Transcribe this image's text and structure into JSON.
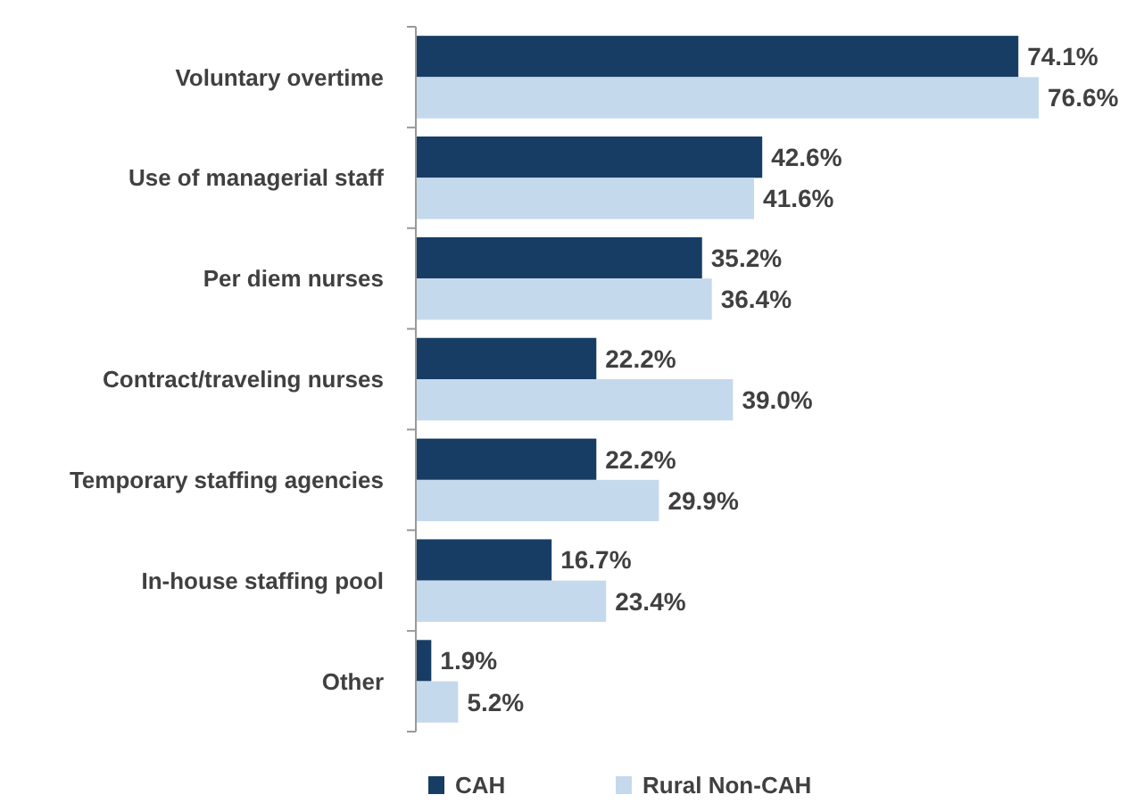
{
  "chart_data": {
    "type": "bar",
    "orientation": "horizontal",
    "categories": [
      "Voluntary overtime",
      "Use of managerial staff",
      "Per diem nurses",
      "Contract/traveling nurses",
      "Temporary staffing agencies",
      "In-house staffing pool",
      "Other"
    ],
    "series": [
      {
        "name": "CAH",
        "color": "#173d65",
        "values": [
          74.1,
          42.6,
          35.2,
          22.2,
          22.2,
          16.7,
          1.9
        ],
        "value_labels": [
          "74.1%",
          "42.6%",
          "35.2%",
          "22.2%",
          "22.2%",
          "16.7%",
          "1.9%"
        ]
      },
      {
        "name": "Rural Non-CAH",
        "color": "#c5d9ec",
        "values": [
          76.6,
          41.6,
          36.4,
          39.0,
          29.9,
          23.4,
          5.2
        ],
        "value_labels": [
          "76.6%",
          "41.6%",
          "36.4%",
          "39.0%",
          "29.9%",
          "23.4%",
          "5.2%"
        ]
      }
    ],
    "legend": "bottom",
    "tick_labels": "y"
  }
}
